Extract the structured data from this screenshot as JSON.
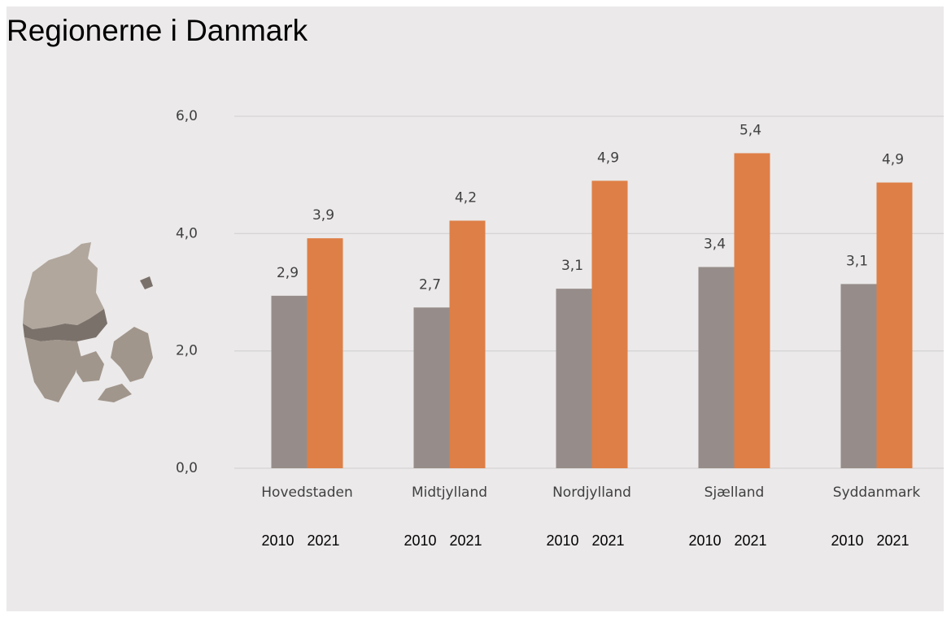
{
  "chart_data": {
    "type": "bar",
    "title": "Regionerne i Danmark",
    "categories": [
      "Hovedstaden",
      "Midtjylland",
      "Nordjylland",
      "Sjælland",
      "Syddanmark"
    ],
    "series": [
      {
        "name": "2010",
        "color": "#968d8a",
        "values": [
          2.94,
          2.74,
          3.06,
          3.43,
          3.14
        ],
        "value_labels": [
          "2,9",
          "2,7",
          "3,1",
          "3,4",
          "3,1"
        ]
      },
      {
        "name": "2021",
        "color": "#de7f47",
        "values": [
          3.92,
          4.22,
          4.9,
          5.37,
          4.87
        ],
        "value_labels": [
          "3,9",
          "4,2",
          "4,9",
          "5,4",
          "4,9"
        ]
      }
    ],
    "ylim": [
      0,
      6
    ],
    "yticks": [
      {
        "value": 0,
        "label": "0,0"
      },
      {
        "value": 2,
        "label": "2,0"
      },
      {
        "value": 4,
        "label": "4,0"
      },
      {
        "value": 6,
        "label": "6,0"
      }
    ],
    "grid": true
  }
}
